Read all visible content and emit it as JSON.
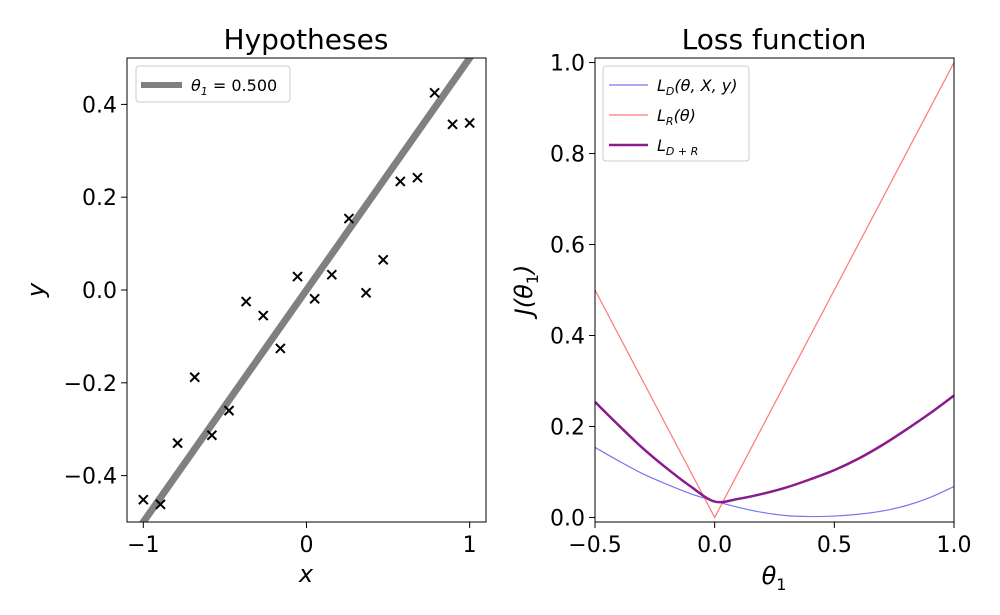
{
  "chart_data": [
    {
      "type": "scatter",
      "title": "Hypotheses",
      "xlabel": "x",
      "ylabel": "y",
      "xlim": [
        -1.1,
        1.1
      ],
      "ylim": [
        -0.5,
        0.5
      ],
      "xticks": [
        -1,
        0,
        1
      ],
      "xtick_labels": [
        "−1",
        "0",
        "1"
      ],
      "yticks": [
        -0.4,
        -0.2,
        0.0,
        0.2,
        0.4
      ],
      "ytick_labels": [
        "−0.4",
        "−0.2",
        "0.0",
        "0.2",
        "0.4"
      ],
      "grid": false,
      "legend_position": "top-left",
      "series": [
        {
          "name": "θ1 = 0.500",
          "kind": "line",
          "color": "#808080",
          "slope": 0.5,
          "intercept": 0.0
        },
        {
          "kind": "scatter",
          "marker": "x",
          "color": "#000000",
          "points": [
            [
              -1.0,
              -0.452
            ],
            [
              -0.895,
              -0.462
            ],
            [
              -0.79,
              -0.33
            ],
            [
              -0.685,
              -0.188
            ],
            [
              -0.58,
              -0.313
            ],
            [
              -0.475,
              -0.26
            ],
            [
              -0.37,
              -0.025
            ],
            [
              -0.265,
              -0.055
            ],
            [
              -0.16,
              -0.126
            ],
            [
              -0.055,
              0.029
            ],
            [
              0.05,
              -0.019
            ],
            [
              0.155,
              0.033
            ],
            [
              0.26,
              0.154
            ],
            [
              0.365,
              -0.006
            ],
            [
              0.47,
              0.065
            ],
            [
              0.575,
              0.234
            ],
            [
              0.68,
              0.242
            ],
            [
              0.785,
              0.425
            ],
            [
              0.895,
              0.357
            ],
            [
              1.0,
              0.36
            ]
          ]
        }
      ],
      "legend": [
        {
          "symbol": "θ",
          "sub": "1",
          "rest": " = 0.500"
        }
      ]
    },
    {
      "type": "line",
      "title": "Loss function",
      "xlabel": "θ1",
      "ylabel": "J(θ1)",
      "xlim": [
        -0.5,
        1.0
      ],
      "ylim": [
        -0.01,
        1.01
      ],
      "xticks": [
        -0.5,
        0.0,
        0.5,
        1.0
      ],
      "xtick_labels": [
        "−0.5",
        "0.0",
        "0.5",
        "1.0"
      ],
      "yticks": [
        0.0,
        0.2,
        0.4,
        0.6,
        0.8,
        1.0
      ],
      "ytick_labels": [
        "0.0",
        "0.2",
        "0.4",
        "0.6",
        "0.8",
        "1.0"
      ],
      "grid": false,
      "legend_position": "top-left",
      "series": [
        {
          "name": "L_D(θ, X, y)",
          "color": "#7777ee",
          "x": [
            -0.5,
            -0.4,
            -0.3,
            -0.2,
            -0.1,
            0.0,
            0.1,
            0.2,
            0.3,
            0.4,
            0.5,
            0.6,
            0.7,
            0.8,
            0.9,
            1.0
          ],
          "y": [
            0.154,
            0.124,
            0.096,
            0.073,
            0.052,
            0.036,
            0.022,
            0.011,
            0.004,
            0.002,
            0.003,
            0.007,
            0.014,
            0.026,
            0.044,
            0.068
          ]
        },
        {
          "name": "L_R(θ)",
          "color": "#ff7777",
          "x": [
            -0.5,
            0.0,
            1.0
          ],
          "y": [
            0.5,
            0.0,
            1.0
          ]
        },
        {
          "name": "L_D+R",
          "color": "#8b1a8b",
          "x": [
            -0.5,
            -0.4,
            -0.3,
            -0.2,
            -0.1,
            0.0,
            0.1,
            0.2,
            0.3,
            0.4,
            0.5,
            0.6,
            0.7,
            0.8,
            0.9,
            1.0
          ],
          "y": [
            0.254,
            0.202,
            0.152,
            0.108,
            0.068,
            0.035,
            0.041,
            0.052,
            0.066,
            0.084,
            0.104,
            0.129,
            0.159,
            0.193,
            0.229,
            0.268
          ]
        }
      ],
      "legend": [
        {
          "base": "L",
          "sub": "D",
          "rest": "(θ, X, y)"
        },
        {
          "base": "L",
          "sub": "R",
          "rest": "(θ)"
        },
        {
          "base": "L",
          "sub": "D + R",
          "rest": ""
        }
      ]
    }
  ]
}
